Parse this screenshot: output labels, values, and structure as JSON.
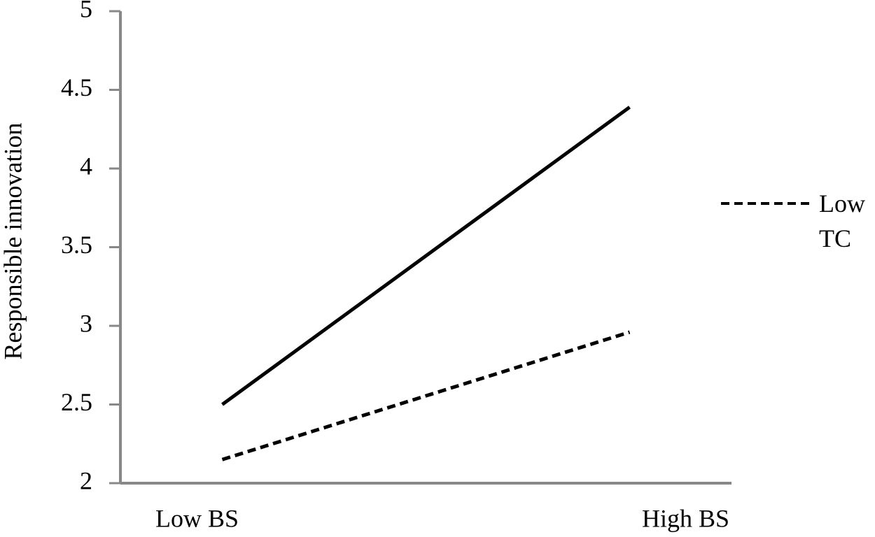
{
  "chart_data": {
    "type": "line",
    "y_label": "Responsible innovation",
    "categories": [
      "Low BS",
      "High BS"
    ],
    "series": [
      {
        "color": "#000000",
        "dash": "solid",
        "values": [
          2.5,
          4.39
        ]
      },
      {
        "name": "Low TC",
        "color": "#000000",
        "dash": "dashed",
        "values": [
          2.15,
          2.96
        ]
      }
    ],
    "ylim": [
      2,
      5
    ],
    "yticks": [
      2,
      2.5,
      3,
      3.5,
      4,
      4.5,
      5
    ],
    "grid": false,
    "legend": "right"
  }
}
